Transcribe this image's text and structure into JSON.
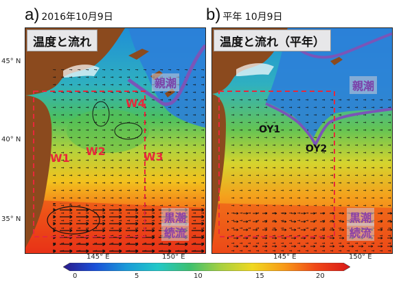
{
  "panels": [
    {
      "letter": "a)",
      "date": "2016年10月9日",
      "map_title": "温度と流れ",
      "region_labels": [
        "W1",
        "W2",
        "W3",
        "W4"
      ],
      "current_labels": {
        "oyashio": "親潮",
        "kuroshio_line1": "黒潮",
        "kuroshio_line2": "続流"
      }
    },
    {
      "letter": "b)",
      "date": "平年 10月9日",
      "map_title": "温度と流れ（平年）",
      "region_labels": [
        "OY1",
        "OY2"
      ],
      "current_labels": {
        "oyashio": "親潮",
        "kuroshio_line1": "黒潮",
        "kuroshio_line2": "続流"
      }
    }
  ],
  "lat_ticks": [
    "45° N",
    "40° N",
    "35° N"
  ],
  "lon_ticks": [
    "145° E",
    "150° E"
  ],
  "colorbar": {
    "ticks": [
      "0",
      "5",
      "10",
      "15",
      "20"
    ],
    "colors": [
      "#2a1a8a",
      "#1a4fd8",
      "#1a9ad8",
      "#22c8c8",
      "#3cc070",
      "#a8d040",
      "#f0d820",
      "#f89a18",
      "#f04818",
      "#d81818"
    ]
  }
}
